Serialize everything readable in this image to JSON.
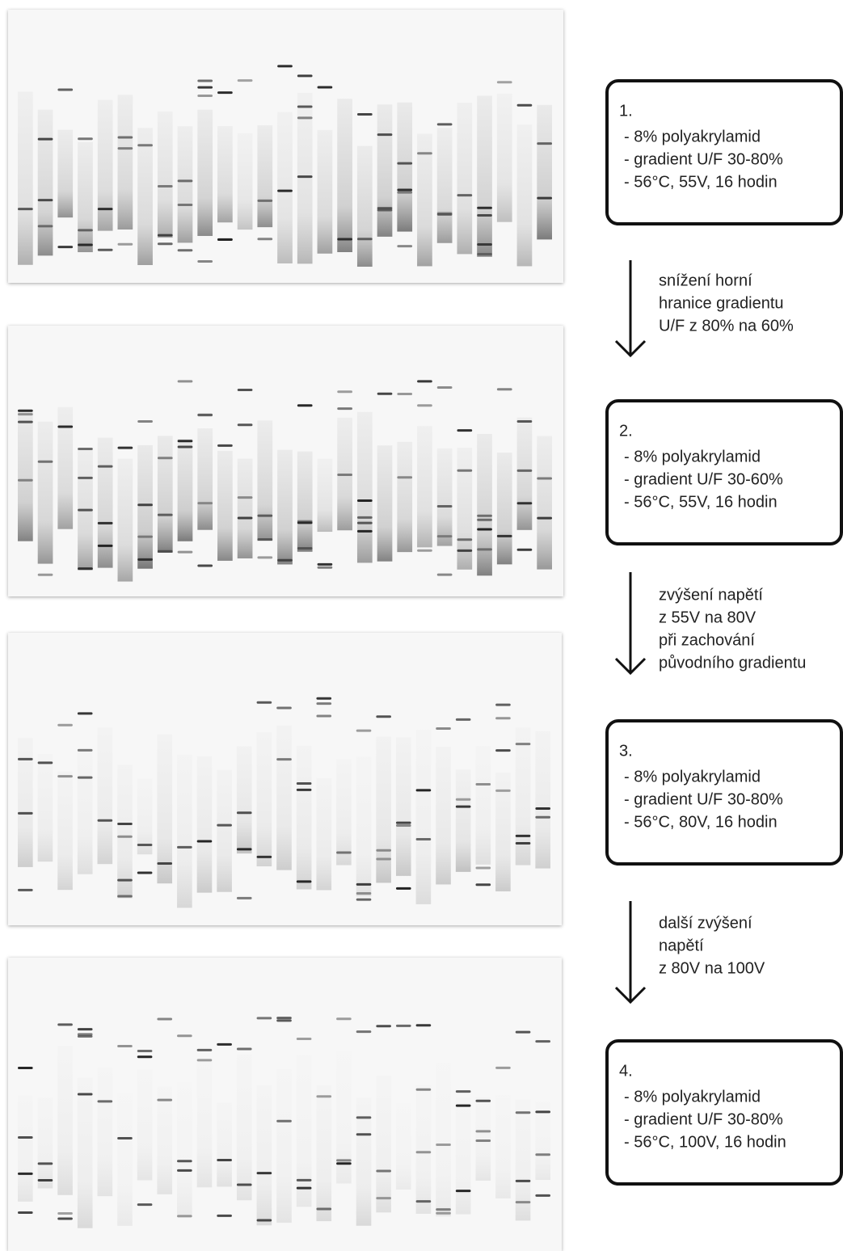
{
  "panels": [
    {
      "number": "1.",
      "lines": [
        "- 8% polyakrylamid",
        "- gradient U/F 30-80%",
        "- 56°C, 55V, 16 hodin"
      ]
    },
    {
      "number": "2.",
      "lines": [
        "- 8% polyakrylamid",
        "- gradient U/F 30-60%",
        "- 56°C, 55V, 16 hodin"
      ]
    },
    {
      "number": "3.",
      "lines": [
        "- 8% polyakrylamid",
        "- gradient U/F 30-80%",
        "- 56°C, 80V, 16 hodin"
      ]
    },
    {
      "number": "4.",
      "lines": [
        "- 8% polyakrylamid",
        "- gradient U/F 30-80%",
        "- 56°C, 100V, 16 hodin"
      ]
    }
  ],
  "transitions": [
    {
      "lines": [
        "snížení horní",
        "hranice gradientu",
        "U/F z 80% na 60%"
      ]
    },
    {
      "lines": [
        "zvýšení napětí",
        "z 55V na 80V",
        "při zachování",
        "původního gradientu"
      ]
    },
    {
      "lines": [
        "další zvýšení",
        "napětí",
        "z 80V na 100V"
      ]
    }
  ]
}
